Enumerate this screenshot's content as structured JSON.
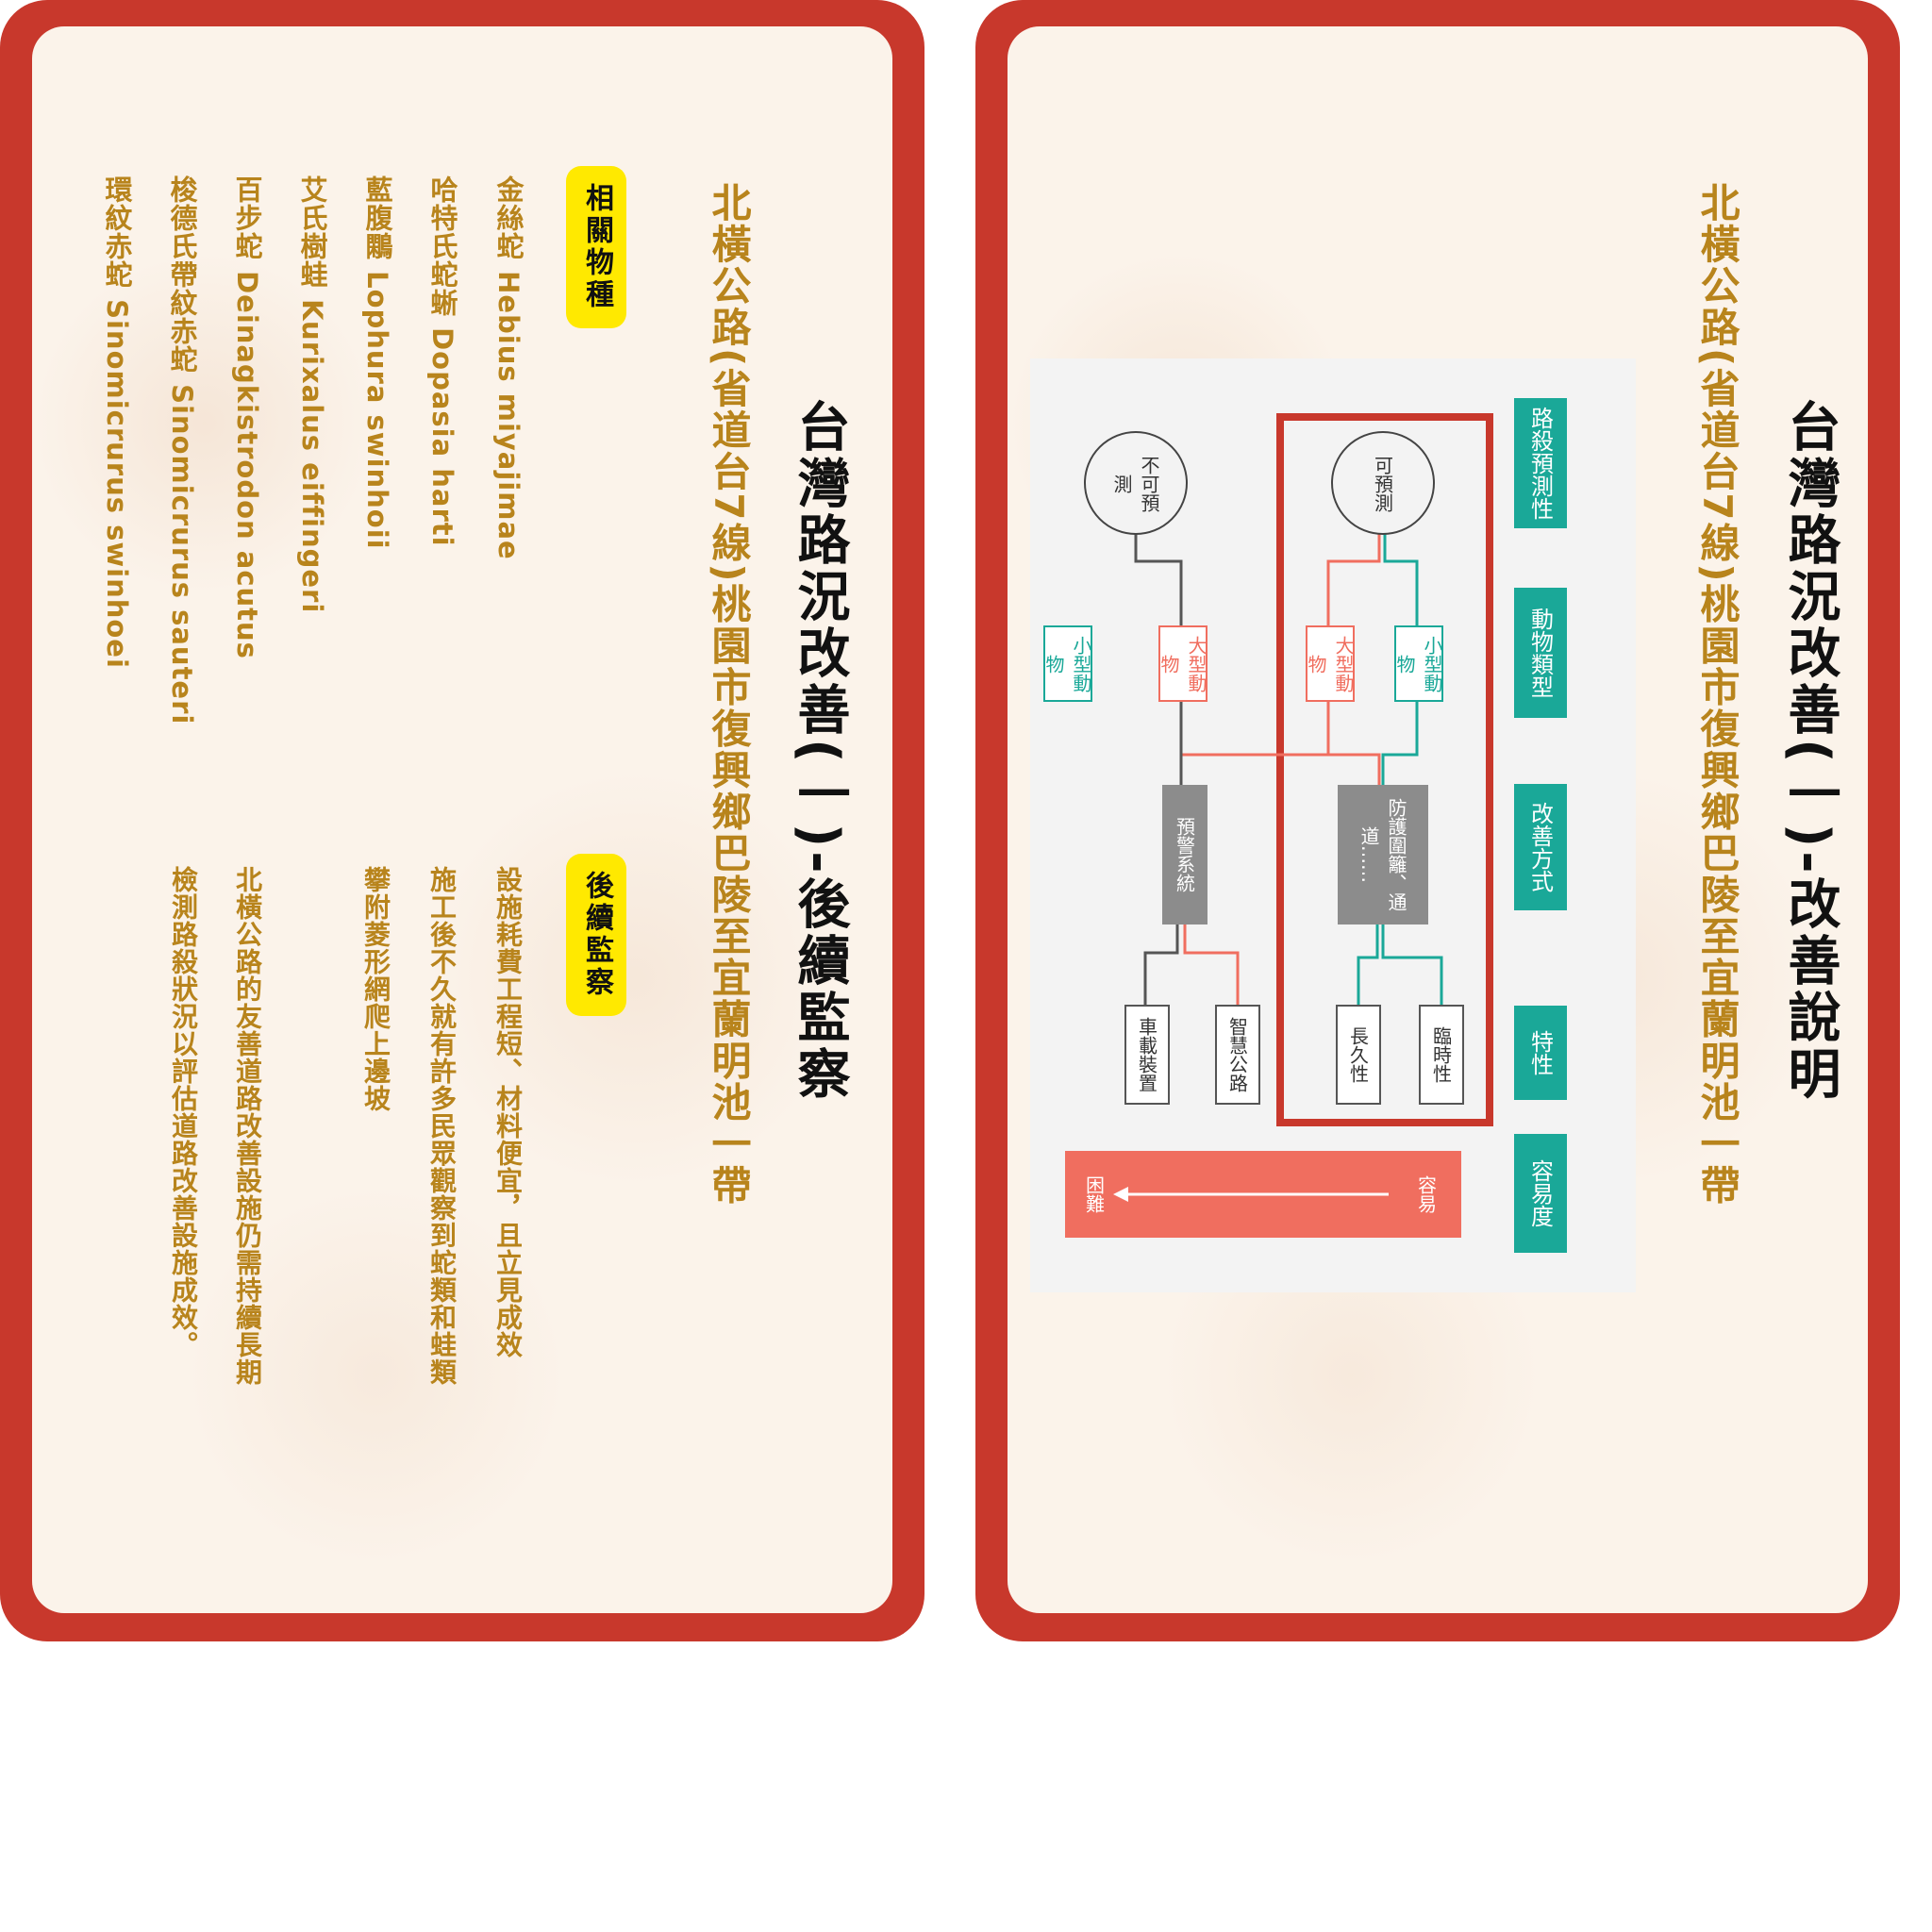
{
  "left": {
    "title": "台灣路況改善(一)-後續監察",
    "subtitle": "北橫公路(省道台7線)桃園市復興鄉巴陵至宜蘭明池一帶",
    "species_tag": "相關物種",
    "species": [
      "金絲蛇 Hebius miyajimae",
      "哈特氏蛇蜥 Dopasia harti",
      "藍腹鷴 Lophura swinhoii",
      "艾氏樹蛙 Kurixalus eiffingeri",
      "百步蛇 Deinagkistrodon acutus",
      "梭德氏帶紋赤蛇 Sinomicrurus sauteri",
      "環紋赤蛇 Sinomicrurus swinhoei"
    ],
    "monitor_tag": "後續監察",
    "monitor_lines": [
      "設施耗費工程短、材料便宜，且立見成效",
      "施工後不久就有許多民眾觀察到蛇類和蛙類",
      "攀附菱形網爬上邊坡",
      "北橫公路的友善道路改善設施仍需持續長期",
      "檢測路殺狀況以評估道路改善設施成效。"
    ]
  },
  "right": {
    "title": "台灣路況改善(一)-改善說明",
    "subtitle": "北橫公路(省道台7線)桃園市復興鄉巴陵至宜蘭明池一帶",
    "diagram": {
      "row_labels": [
        "路殺預測性",
        "動物類型",
        "改善方式",
        "特性",
        "容易度"
      ],
      "predictable": "可預測",
      "unpredictable": "不可預測",
      "small_animal": "小型動物",
      "large_animal": "大型動物",
      "fence": "防護圍籬、通道……",
      "warning": "預警系統",
      "temporary": "臨時性",
      "permanent": "長久性",
      "smart_road": "智慧公路",
      "vehicle_device": "車載裝置",
      "easy": "容易",
      "hard": "困難",
      "colors": {
        "teal": "#1aa898",
        "salmon": "#f06e5f",
        "gray": "#8c8c8c",
        "highlight": "#c8382c"
      }
    }
  }
}
